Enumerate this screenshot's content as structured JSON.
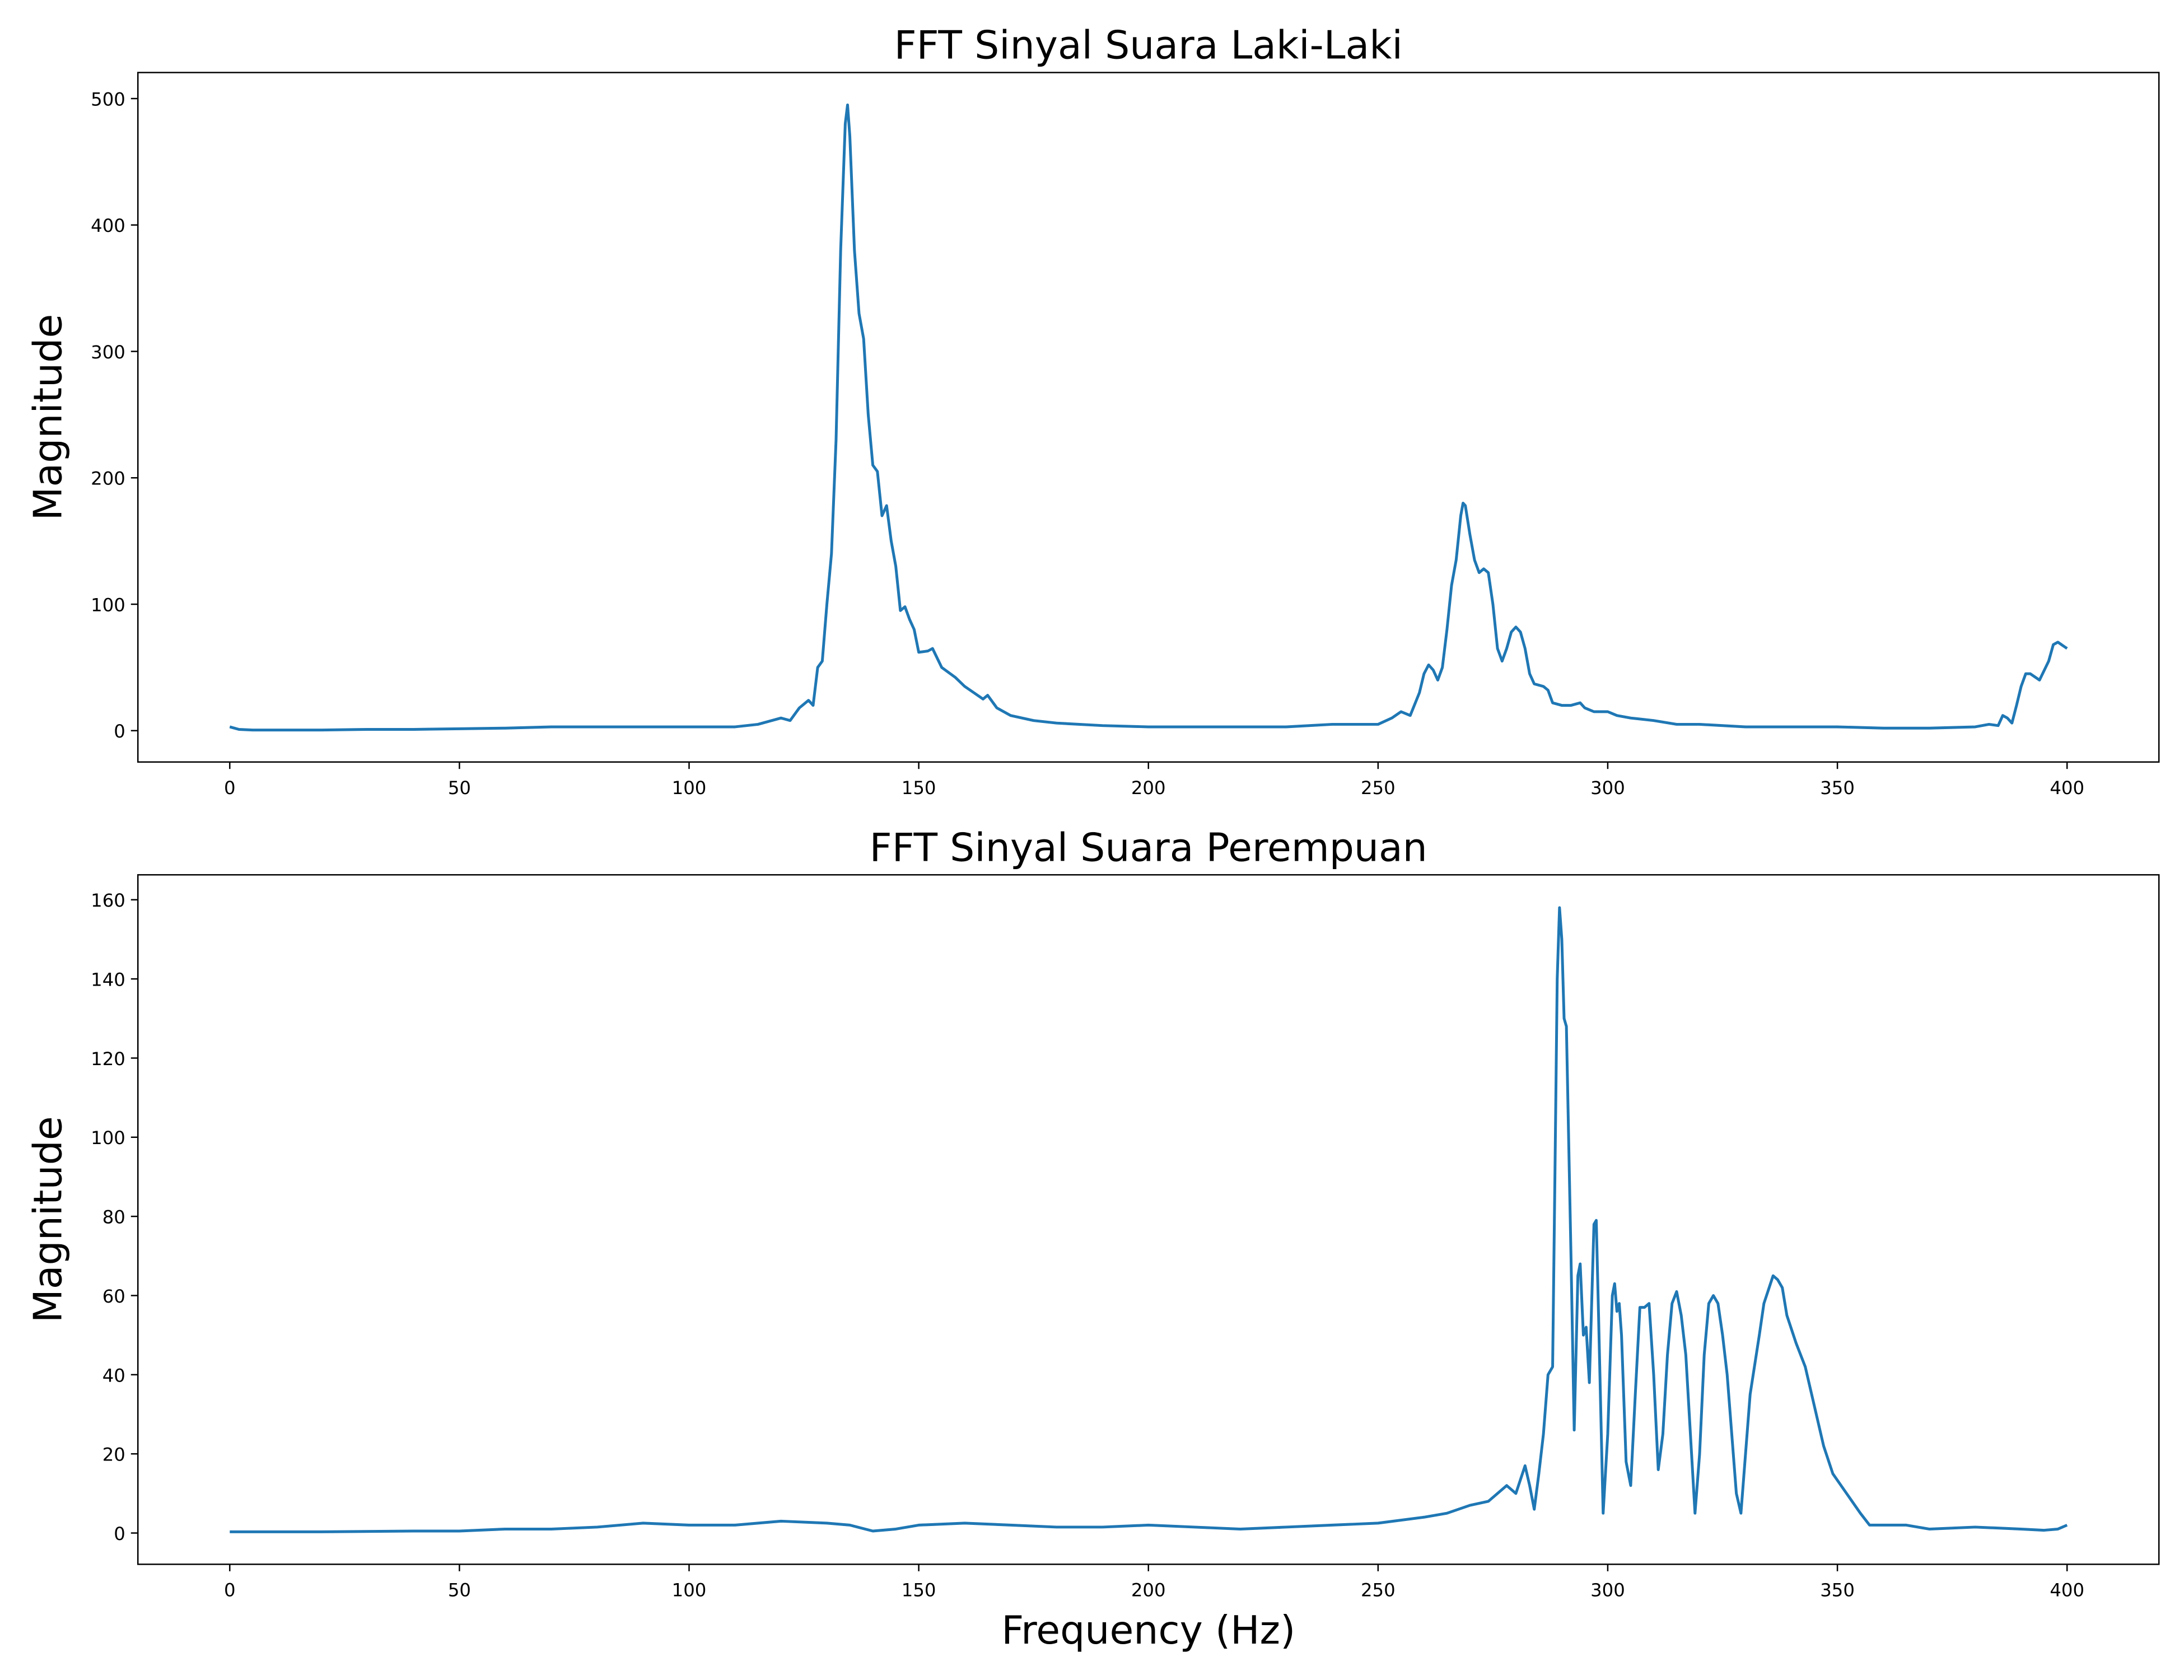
{
  "chart_data": [
    {
      "type": "line",
      "title": "FFT Sinyal Suara Laki-Laki",
      "y_label": "Magnitude",
      "color": "#1f77b4",
      "x": [
        0,
        2,
        5,
        10,
        20,
        30,
        40,
        50,
        60,
        70,
        80,
        90,
        100,
        110,
        115,
        120,
        122,
        124,
        126,
        127,
        128,
        129,
        130,
        131,
        132,
        133,
        134,
        134.5,
        135,
        136,
        137,
        138,
        139,
        140,
        141,
        142,
        143,
        144,
        145,
        146,
        147,
        148,
        149,
        150,
        152,
        153,
        155,
        158,
        160,
        162,
        164,
        165,
        167,
        170,
        175,
        180,
        190,
        200,
        210,
        220,
        230,
        240,
        245,
        250,
        253,
        255,
        257,
        259,
        260,
        261,
        262,
        263,
        264,
        265,
        266,
        267,
        268,
        268.5,
        269,
        270,
        271,
        272,
        273,
        274,
        275,
        276,
        277,
        278,
        279,
        280,
        281,
        282,
        283,
        284,
        286,
        287,
        288,
        290,
        292,
        294,
        295,
        297,
        300,
        302,
        305,
        310,
        315,
        320,
        330,
        340,
        350,
        360,
        370,
        380,
        383,
        385,
        386,
        387,
        388,
        389,
        390,
        391,
        392,
        394,
        396,
        397,
        398,
        400
      ],
      "values": [
        3,
        1,
        0.5,
        0.5,
        0.5,
        1,
        1,
        1.5,
        2,
        3,
        3,
        3,
        3,
        3,
        5,
        10,
        8,
        18,
        24,
        20,
        50,
        55,
        100,
        140,
        230,
        380,
        480,
        495,
        470,
        380,
        330,
        310,
        250,
        210,
        205,
        170,
        178,
        150,
        130,
        95,
        98,
        88,
        80,
        62,
        63,
        65,
        50,
        42,
        35,
        30,
        25,
        28,
        18,
        12,
        8,
        6,
        4,
        3,
        3,
        3,
        3,
        5,
        5,
        5,
        10,
        15,
        12,
        30,
        45,
        52,
        48,
        40,
        50,
        80,
        115,
        135,
        170,
        180,
        178,
        155,
        135,
        125,
        128,
        125,
        100,
        65,
        55,
        65,
        78,
        82,
        78,
        65,
        45,
        37,
        35,
        32,
        22,
        20,
        20,
        22,
        18,
        15,
        15,
        12,
        10,
        8,
        5,
        5,
        3,
        3,
        3,
        2,
        2,
        3,
        5,
        4,
        12,
        10,
        6,
        20,
        35,
        45,
        45,
        40,
        55,
        68,
        70,
        65
      ],
      "xlim": [
        -20,
        420
      ],
      "ylim": [
        -24.8,
        520.6
      ],
      "xticks": [
        0,
        50,
        100,
        150,
        200,
        250,
        300,
        350,
        400
      ],
      "yticks": [
        0,
        100,
        200,
        300,
        400,
        500
      ]
    },
    {
      "type": "line",
      "title": "FFT Sinyal Suara Perempuan",
      "y_label": "Magnitude",
      "x_label": "Frequency (Hz)",
      "color": "#1f77b4",
      "x": [
        0,
        20,
        40,
        50,
        60,
        70,
        80,
        90,
        100,
        110,
        120,
        130,
        135,
        140,
        145,
        150,
        160,
        170,
        180,
        190,
        200,
        210,
        220,
        230,
        240,
        250,
        260,
        265,
        270,
        274,
        276,
        278,
        280,
        282,
        283,
        284,
        285,
        286,
        287,
        288,
        288.5,
        289,
        289.5,
        290,
        290.5,
        291,
        292,
        292.7,
        293.5,
        294,
        294.7,
        295.3,
        296,
        297,
        297.5,
        298,
        299,
        300,
        301,
        301.5,
        302,
        302.5,
        303,
        304,
        305,
        306,
        307,
        308,
        309,
        310,
        311,
        312,
        313,
        314,
        315,
        316,
        317,
        318,
        319,
        320,
        321,
        322,
        323,
        324,
        325,
        326,
        327,
        328,
        329,
        330,
        331,
        333,
        334,
        336,
        337,
        338,
        339,
        341,
        343,
        345,
        347,
        349,
        352,
        355,
        357,
        360,
        365,
        370,
        380,
        390,
        395,
        398,
        400
      ],
      "values": [
        0.3,
        0.3,
        0.5,
        0.5,
        1,
        1,
        1.5,
        2.5,
        2,
        2,
        3,
        2.5,
        2,
        0.5,
        1,
        2,
        2.5,
        2,
        1.5,
        1.5,
        2,
        1.5,
        1,
        1.5,
        2,
        2.5,
        4,
        5,
        7,
        8,
        10,
        12,
        10,
        17,
        12,
        6,
        15,
        25,
        40,
        42,
        90,
        140,
        158,
        150,
        130,
        128,
        70,
        26,
        65,
        68,
        50,
        52,
        38,
        78,
        79,
        55,
        5,
        25,
        60,
        63,
        56,
        58,
        50,
        18,
        12,
        35,
        57,
        57,
        58,
        40,
        16,
        25,
        45,
        58,
        61,
        55,
        45,
        25,
        5,
        20,
        45,
        58,
        60,
        58,
        50,
        40,
        25,
        10,
        5,
        20,
        35,
        50,
        58,
        65,
        64,
        62,
        55,
        48,
        42,
        32,
        22,
        15,
        10,
        5,
        2,
        2,
        2,
        1,
        1.5,
        1,
        0.7,
        1,
        2
      ],
      "xlim": [
        -20,
        420
      ],
      "ylim": [
        -7.9,
        166.3
      ],
      "xticks": [
        0,
        50,
        100,
        150,
        200,
        250,
        300,
        350,
        400
      ],
      "yticks": [
        0,
        20,
        40,
        60,
        80,
        100,
        120,
        140,
        160
      ]
    }
  ]
}
